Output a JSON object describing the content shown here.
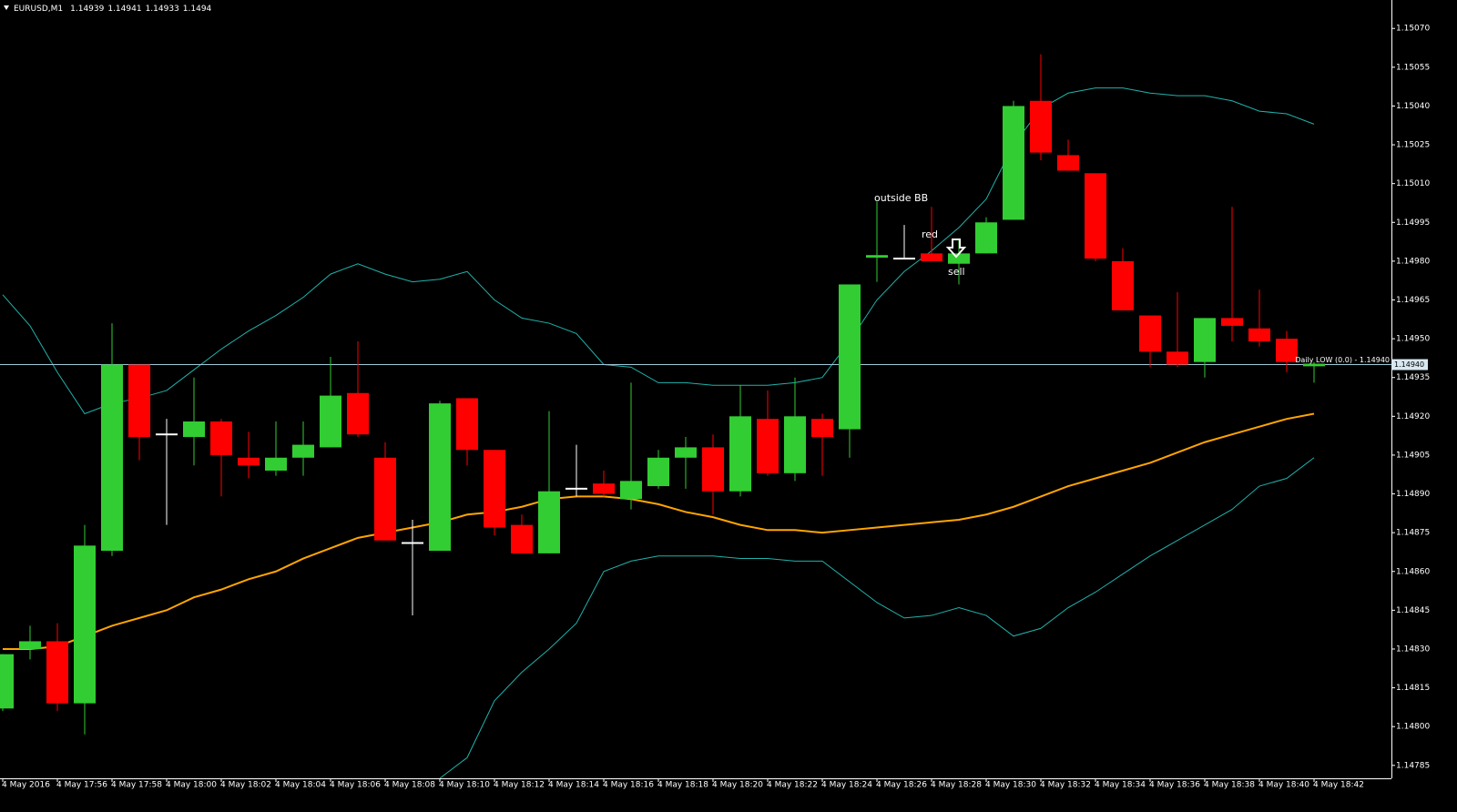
{
  "chart_data": {
    "type": "candlestick",
    "title": "EURUSD,M1",
    "header_values": [
      1.14939,
      1.14941,
      1.14933,
      1.1494
    ],
    "categories": [
      "4 May 2016",
      null,
      "4 May 17:56",
      null,
      "4 May 17:58",
      null,
      "4 May 18:00",
      null,
      "4 May 18:02",
      null,
      "4 May 18:04",
      null,
      "4 May 18:06",
      null,
      "4 May 18:08",
      null,
      "4 May 18:10",
      null,
      "4 May 18:12",
      null,
      "4 May 18:14",
      null,
      "4 May 18:16",
      null,
      "4 May 18:18",
      null,
      "4 May 18:20",
      null,
      "4 May 18:22",
      null,
      "4 May 18:24",
      null,
      "4 May 18:26",
      null,
      "4 May 18:28",
      null,
      "4 May 18:30",
      null,
      "4 May 18:32",
      null,
      "4 May 18:34",
      null,
      "4 May 18:36",
      null,
      "4 May 18:38",
      null,
      "4 May 18:40",
      null,
      "4 May 18:42"
    ],
    "open": [
      1.14807,
      1.1483,
      1.14833,
      1.14809,
      1.14868,
      1.1494,
      1.14913,
      1.14912,
      1.14918,
      1.14904,
      1.14899,
      1.14904,
      1.14908,
      1.14929,
      1.14904,
      1.14871,
      1.14868,
      1.14927,
      1.14907,
      1.14878,
      1.14867,
      1.14892,
      1.14894,
      1.14888,
      1.14893,
      1.14904,
      1.14908,
      1.14891,
      1.14919,
      1.14898,
      1.14919,
      1.14915,
      1.14981,
      1.14981,
      1.14983,
      1.14979,
      1.14983,
      1.14996,
      1.15042,
      1.15021,
      1.15014,
      1.1498,
      1.14959,
      1.14945,
      1.14941,
      1.14958,
      1.14954,
      1.1495,
      1.14939
    ],
    "high": [
      1.14828,
      1.14839,
      1.1484,
      1.14878,
      1.14956,
      1.1494,
      1.14919,
      1.14935,
      1.14919,
      1.14914,
      1.14918,
      1.14918,
      1.14943,
      1.14949,
      1.1491,
      1.1488,
      1.14926,
      1.14927,
      1.14907,
      1.14882,
      1.14922,
      1.14909,
      1.14899,
      1.14933,
      1.14907,
      1.14912,
      1.14913,
      1.14932,
      1.1493,
      1.14935,
      1.14921,
      1.14971,
      1.15003,
      1.14994,
      1.15001,
      1.14988,
      1.14997,
      1.15042,
      1.1506,
      1.15027,
      1.15014,
      1.14985,
      1.14959,
      1.14968,
      1.14958,
      1.15001,
      1.14969,
      1.14953,
      1.14941
    ],
    "low": [
      1.14806,
      1.14826,
      1.14806,
      1.14797,
      1.14866,
      1.14903,
      1.14878,
      1.14901,
      1.14889,
      1.14896,
      1.14897,
      1.14897,
      1.14908,
      1.14912,
      1.14872,
      1.14843,
      1.14868,
      1.14901,
      1.14874,
      1.14867,
      1.14867,
      1.14889,
      1.14889,
      1.14884,
      1.14892,
      1.14892,
      1.14882,
      1.14889,
      1.14897,
      1.14895,
      1.14897,
      1.14904,
      1.14972,
      1.14981,
      1.1498,
      1.14971,
      1.14983,
      1.14996,
      1.15019,
      1.15015,
      1.1498,
      1.14961,
      1.14939,
      1.14939,
      1.14935,
      1.14949,
      1.14947,
      1.14937,
      1.14933
    ],
    "close": [
      1.14828,
      1.14833,
      1.14809,
      1.1487,
      1.1494,
      1.14912,
      1.14913,
      1.14918,
      1.14905,
      1.14901,
      1.14904,
      1.14909,
      1.14928,
      1.14913,
      1.14872,
      1.14871,
      1.14925,
      1.14907,
      1.14877,
      1.14867,
      1.14891,
      1.14892,
      1.1489,
      1.14895,
      1.14904,
      1.14908,
      1.14891,
      1.1492,
      1.14898,
      1.1492,
      1.14912,
      1.14971,
      1.14982,
      1.14981,
      1.1498,
      1.14983,
      1.14995,
      1.1504,
      1.15022,
      1.15015,
      1.14981,
      1.14961,
      1.14945,
      1.1494,
      1.14958,
      1.14955,
      1.14949,
      1.14941,
      1.1494
    ],
    "up_color": "#32cd32",
    "down_color": "#ff0000",
    "doji_color": "#ffffff",
    "lines": [
      {
        "color": "#20b2aa",
        "values": [
          1.14967,
          1.14955,
          1.14937,
          1.14921,
          1.14925,
          1.14927,
          1.1493,
          1.14938,
          1.14946,
          1.14953,
          1.14959,
          1.14966,
          1.14975,
          1.14979,
          1.14975,
          1.14972,
          1.14973,
          1.14976,
          1.14965,
          1.14958,
          1.14956,
          1.14952,
          1.1494,
          1.14939,
          1.14933,
          1.14933,
          1.14932,
          1.14932,
          1.14932,
          1.14933,
          1.14935,
          1.14949,
          1.14965,
          1.14976,
          1.14984,
          1.14993,
          1.15004,
          1.15025,
          1.15039,
          1.15045,
          1.15047,
          1.15047,
          1.15045,
          1.15044,
          1.15044,
          1.15042,
          1.15038,
          1.15037,
          1.15033
        ]
      },
      {
        "color": "#20b2aa",
        "values": [
          null,
          null,
          null,
          null,
          null,
          null,
          null,
          null,
          null,
          null,
          null,
          null,
          null,
          null,
          null,
          null,
          1.1478,
          1.14788,
          1.1481,
          1.14821,
          1.1483,
          1.1484,
          1.1486,
          1.14864,
          1.14866,
          1.14866,
          1.14866,
          1.14865,
          1.14865,
          1.14864,
          1.14864,
          1.14856,
          1.14848,
          1.14842,
          1.14843,
          1.14846,
          1.14843,
          1.14835,
          1.14838,
          1.14846,
          1.14852,
          1.14859,
          1.14866,
          1.14872,
          1.14878,
          1.14884,
          1.14893,
          1.14896,
          1.14904
        ]
      },
      {
        "color": "#ffa500",
        "values": [
          1.1483,
          1.1483,
          1.14831,
          1.14835,
          1.14839,
          1.14842,
          1.14845,
          1.1485,
          1.14853,
          1.14857,
          1.1486,
          1.14865,
          1.14869,
          1.14873,
          1.14875,
          1.14877,
          1.14879,
          1.14882,
          1.14883,
          1.14885,
          1.14888,
          1.14889,
          1.14889,
          1.14888,
          1.14886,
          1.14883,
          1.14881,
          1.14878,
          1.14876,
          1.14876,
          1.14875,
          1.14876,
          1.14877,
          1.14878,
          1.14879,
          1.1488,
          1.14882,
          1.14885,
          1.14889,
          1.14893,
          1.14896,
          1.14899,
          1.14902,
          1.14906,
          1.1491,
          1.14913,
          1.14916,
          1.14919,
          1.14921
        ]
      }
    ],
    "hline": {
      "value": 1.1494,
      "label": "Daily LOW (0.0) -  1.14940",
      "color": "#9fc8d8",
      "label_color": "#c8e632"
    },
    "price_tag": {
      "value": 1.1494,
      "label": "1.14940"
    },
    "annotations": [
      "outside BB",
      "red",
      "sell"
    ],
    "ylim": [
      1.1478,
      1.15081
    ],
    "yticks": [
      {
        "value": 1.1507,
        "label": "1.15070"
      },
      1.15055,
      {
        "value": 1.1504,
        "label": "1.15040"
      },
      1.15025,
      {
        "value": 1.1501,
        "label": "1.15010"
      },
      1.14995,
      {
        "value": 1.1498,
        "label": "1.14980"
      },
      1.14965,
      {
        "value": 1.1495,
        "label": "1.14950"
      },
      1.14935,
      {
        "value": 1.1492,
        "label": "1.14920"
      },
      1.14905,
      {
        "value": 1.1489,
        "label": "1.14890"
      },
      1.14875,
      {
        "value": 1.1486,
        "label": "1.14860"
      },
      1.14845,
      {
        "value": 1.1483,
        "label": "1.14830"
      },
      1.14815,
      {
        "value": 1.148,
        "label": "1.14800"
      },
      1.14785
    ],
    "grid": false
  }
}
